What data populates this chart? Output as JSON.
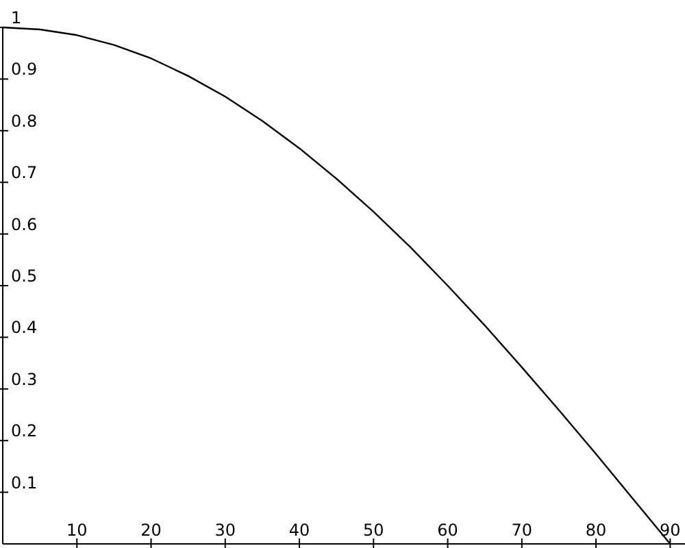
{
  "chart_data": {
    "type": "line",
    "x": [
      0,
      5,
      10,
      15,
      20,
      25,
      30,
      35,
      40,
      45,
      50,
      55,
      60,
      65,
      70,
      75,
      80,
      85,
      90
    ],
    "series": [
      {
        "color": "#000000",
        "values": [
          1,
          0.996,
          0.985,
          0.966,
          0.94,
          0.906,
          0.866,
          0.819,
          0.766,
          0.707,
          0.643,
          0.574,
          0.5,
          0.423,
          0.342,
          0.259,
          0.174,
          0.087,
          0
        ]
      }
    ],
    "xlim": [
      0,
      92
    ],
    "ylim": [
      0,
      1
    ],
    "xticks": [
      10,
      20,
      30,
      40,
      50,
      60,
      70,
      80,
      90
    ],
    "yticks": [
      0.1,
      0.2,
      0.3,
      0.4,
      0.5,
      0.6,
      0.7,
      0.8,
      0.9,
      1
    ],
    "grid": false,
    "marker": "none",
    "line_style": "solid"
  }
}
